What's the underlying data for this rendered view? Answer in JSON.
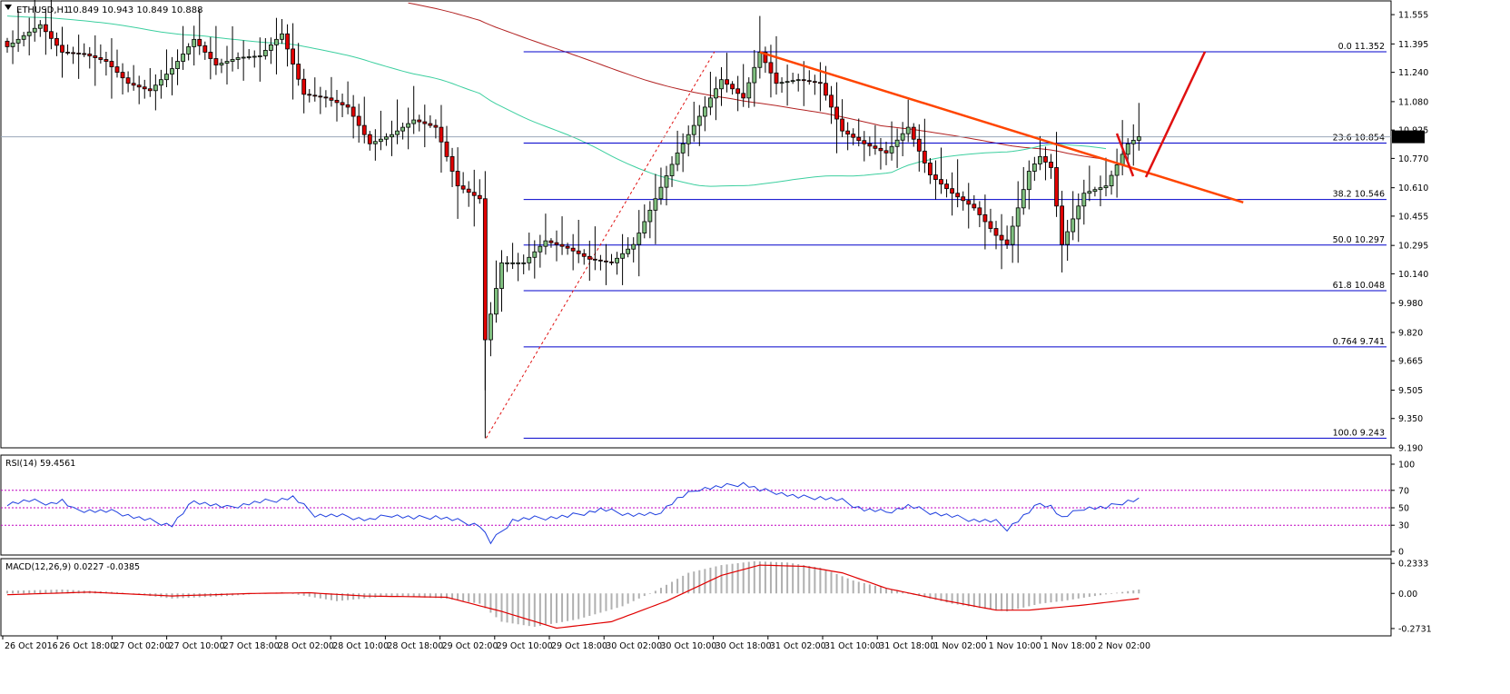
{
  "header": {
    "symbol": "ETHUSD,H1",
    "ohlc": "10.849 10.943 10.849 10.888",
    "current_price": "10.888"
  },
  "colors": {
    "bull_fill": "#7fbf7f",
    "bear_fill": "#e00000",
    "candle_outline": "#000000",
    "ma_slow": "#b22222",
    "ma_fast": "#3ccf9f",
    "fib_line": "#0000cc",
    "trendline": "#ff4500",
    "arrow": "#e01010",
    "rsi_line": "#1f3fdf",
    "macd_signal": "#e00000",
    "macd_hist": "#b0b0b0",
    "level_dots": "#c000c0"
  },
  "chart_data": [
    {
      "type": "candlestick",
      "panel": "price",
      "ylim": [
        9.19,
        11.62
      ],
      "y_ticks": [
        "11.555",
        "11.395",
        "11.240",
        "11.080",
        "10.925",
        "10.770",
        "10.610",
        "10.455",
        "10.295",
        "10.140",
        "9.980",
        "9.820",
        "9.665",
        "9.505",
        "9.350",
        "9.190"
      ],
      "x_labels": [
        "26 Oct 2016",
        "26 Oct 18:00",
        "27 Oct 02:00",
        "27 Oct 10:00",
        "27 Oct 18:00",
        "28 Oct 02:00",
        "28 Oct 10:00",
        "28 Oct 18:00",
        "29 Oct 02:00",
        "29 Oct 10:00",
        "29 Oct 18:00",
        "30 Oct 02:00",
        "30 Oct 10:00",
        "30 Oct 18:00",
        "31 Oct 02:00",
        "31 Oct 10:00",
        "31 Oct 18:00",
        "1 Nov 02:00",
        "1 Nov 10:00",
        "1 Nov 18:00",
        "2 Nov 02:00"
      ],
      "close_anchors": [
        [
          0,
          11.38
        ],
        [
          6,
          11.5
        ],
        [
          10,
          11.35
        ],
        [
          14,
          11.34
        ],
        [
          18,
          11.3
        ],
        [
          22,
          11.18
        ],
        [
          26,
          11.14
        ],
        [
          30,
          11.26
        ],
        [
          34,
          11.42
        ],
        [
          38,
          11.28
        ],
        [
          42,
          11.32
        ],
        [
          46,
          11.33
        ],
        [
          50,
          11.45
        ],
        [
          54,
          11.12
        ],
        [
          58,
          11.1
        ],
        [
          62,
          11.05
        ],
        [
          66,
          10.85
        ],
        [
          70,
          10.9
        ],
        [
          74,
          10.98
        ],
        [
          78,
          10.94
        ],
        [
          82,
          10.62
        ],
        [
          86,
          10.55
        ],
        [
          87,
          9.78
        ],
        [
          90,
          10.2
        ],
        [
          94,
          10.2
        ],
        [
          98,
          10.32
        ],
        [
          102,
          10.28
        ],
        [
          106,
          10.22
        ],
        [
          110,
          10.2
        ],
        [
          114,
          10.3
        ],
        [
          118,
          10.55
        ],
        [
          122,
          10.8
        ],
        [
          126,
          11.0
        ],
        [
          130,
          11.2
        ],
        [
          134,
          11.1
        ],
        [
          137,
          11.35
        ],
        [
          140,
          11.18
        ],
        [
          144,
          11.2
        ],
        [
          148,
          11.18
        ],
        [
          152,
          10.92
        ],
        [
          156,
          10.85
        ],
        [
          160,
          10.8
        ],
        [
          164,
          10.94
        ],
        [
          168,
          10.68
        ],
        [
          172,
          10.58
        ],
        [
          176,
          10.5
        ],
        [
          180,
          10.35
        ],
        [
          182,
          10.3
        ],
        [
          186,
          10.7
        ],
        [
          188,
          10.78
        ],
        [
          190,
          10.72
        ],
        [
          192,
          10.3
        ],
        [
          196,
          10.58
        ],
        [
          200,
          10.62
        ],
        [
          204,
          10.85
        ],
        [
          206,
          10.888
        ]
      ],
      "fibonacci": [
        {
          "ratio": "0.0",
          "price": 11.352,
          "label": "0.0  11.352"
        },
        {
          "ratio": "23.6",
          "price": 10.854,
          "label": "23.6  10.854"
        },
        {
          "ratio": "38.2",
          "price": 10.546,
          "label": "38.2  10.546"
        },
        {
          "ratio": "50.0",
          "price": 10.297,
          "label": "50.0  10.297"
        },
        {
          "ratio": "61.8",
          "price": 10.048,
          "label": "61.8  10.048"
        },
        {
          "ratio": "0.764",
          "price": 9.741,
          "label": "0.764  9.741"
        },
        {
          "ratio": "100.0",
          "price": 9.243,
          "label": "100.0  9.243"
        }
      ],
      "trendline": {
        "from": [
          137,
          11.35
        ],
        "to": [
          225,
          10.53
        ]
      },
      "swing_low": 9.243,
      "swing_high": 11.352
    },
    {
      "type": "line",
      "panel": "rsi",
      "label": "RSI(14) 59.4561",
      "ylim": [
        0,
        100
      ],
      "y_ticks": [
        "100",
        "70",
        "50",
        "30",
        "0"
      ],
      "levels": [
        70,
        50,
        30
      ],
      "anchors": [
        [
          0,
          55
        ],
        [
          4,
          58
        ],
        [
          8,
          55
        ],
        [
          10,
          58
        ],
        [
          12,
          48
        ],
        [
          20,
          45
        ],
        [
          24,
          38
        ],
        [
          30,
          30
        ],
        [
          34,
          58
        ],
        [
          40,
          50
        ],
        [
          44,
          55
        ],
        [
          48,
          58
        ],
        [
          52,
          62
        ],
        [
          56,
          42
        ],
        [
          62,
          40
        ],
        [
          66,
          36
        ],
        [
          70,
          42
        ],
        [
          74,
          38
        ],
        [
          78,
          40
        ],
        [
          82,
          35
        ],
        [
          86,
          30
        ],
        [
          88,
          10
        ],
        [
          92,
          36
        ],
        [
          96,
          38
        ],
        [
          102,
          40
        ],
        [
          108,
          48
        ],
        [
          114,
          42
        ],
        [
          118,
          42
        ],
        [
          122,
          60
        ],
        [
          126,
          72
        ],
        [
          130,
          74
        ],
        [
          134,
          78
        ],
        [
          137,
          70
        ],
        [
          140,
          68
        ],
        [
          144,
          62
        ],
        [
          148,
          62
        ],
        [
          152,
          58
        ],
        [
          156,
          48
        ],
        [
          160,
          45
        ],
        [
          164,
          52
        ],
        [
          168,
          45
        ],
        [
          172,
          40
        ],
        [
          176,
          36
        ],
        [
          180,
          34
        ],
        [
          182,
          26
        ],
        [
          186,
          45
        ],
        [
          188,
          55
        ],
        [
          190,
          52
        ],
        [
          192,
          38
        ],
        [
          196,
          50
        ],
        [
          200,
          50
        ],
        [
          204,
          58
        ],
        [
          206,
          59.46
        ]
      ]
    },
    {
      "type": "bar+line",
      "panel": "macd",
      "label": "MACD(12,26,9) 0.0227 -0.0385",
      "ylim": [
        -0.33,
        0.27
      ],
      "y_ticks": [
        "0.2333",
        "0.00",
        "-0.2731"
      ],
      "hist_anchors": [
        [
          0,
          0.02
        ],
        [
          10,
          0.03
        ],
        [
          20,
          0.01
        ],
        [
          30,
          -0.04
        ],
        [
          40,
          -0.02
        ],
        [
          50,
          0.01
        ],
        [
          60,
          -0.06
        ],
        [
          70,
          -0.02
        ],
        [
          80,
          -0.04
        ],
        [
          86,
          -0.08
        ],
        [
          90,
          -0.22
        ],
        [
          96,
          -0.26
        ],
        [
          104,
          -0.2
        ],
        [
          112,
          -0.1
        ],
        [
          118,
          0.02
        ],
        [
          124,
          0.16
        ],
        [
          130,
          0.22
        ],
        [
          136,
          0.25
        ],
        [
          142,
          0.24
        ],
        [
          148,
          0.2
        ],
        [
          154,
          0.1
        ],
        [
          160,
          0.04
        ],
        [
          166,
          -0.02
        ],
        [
          172,
          -0.08
        ],
        [
          178,
          -0.12
        ],
        [
          182,
          -0.14
        ],
        [
          188,
          -0.08
        ],
        [
          192,
          -0.06
        ],
        [
          198,
          -0.02
        ],
        [
          206,
          0.03
        ]
      ],
      "signal_anchors": [
        [
          0,
          -0.01
        ],
        [
          15,
          0.01
        ],
        [
          30,
          -0.02
        ],
        [
          45,
          0.0
        ],
        [
          55,
          0.005
        ],
        [
          65,
          -0.02
        ],
        [
          80,
          -0.03
        ],
        [
          90,
          -0.14
        ],
        [
          100,
          -0.27
        ],
        [
          110,
          -0.22
        ],
        [
          120,
          -0.06
        ],
        [
          130,
          0.14
        ],
        [
          137,
          0.22
        ],
        [
          145,
          0.21
        ],
        [
          152,
          0.16
        ],
        [
          160,
          0.04
        ],
        [
          170,
          -0.05
        ],
        [
          180,
          -0.13
        ],
        [
          186,
          -0.13
        ],
        [
          196,
          -0.09
        ],
        [
          206,
          -0.04
        ]
      ]
    }
  ]
}
